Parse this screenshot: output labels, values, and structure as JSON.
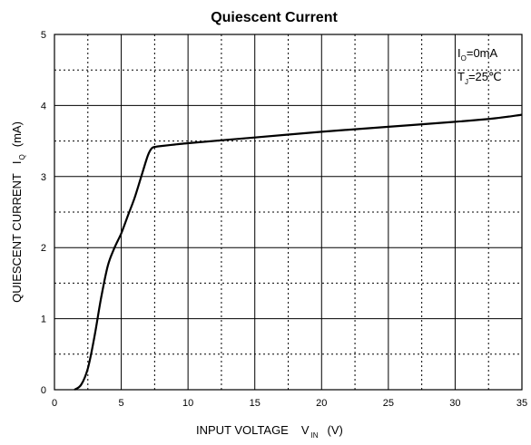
{
  "chart_data": {
    "type": "line",
    "title": "Quiescent Current",
    "xlabel": "INPUT VOLTAGE",
    "xlabel_symbol": "V",
    "xlabel_symbol_sub": "IN",
    "xlabel_unit": "(V)",
    "ylabel": "QUIESCENT CURRENT",
    "ylabel_symbol": "I",
    "ylabel_symbol_sub": "Q",
    "ylabel_unit": "(mA)",
    "xlim": [
      0,
      35
    ],
    "ylim": [
      0,
      5
    ],
    "xticks": [
      0,
      5,
      10,
      15,
      20,
      25,
      30,
      35
    ],
    "yticks": [
      0,
      1,
      2,
      3,
      4,
      5
    ],
    "grid": true,
    "annotations": [
      {
        "symbol": "I",
        "sub": "O",
        "text": "=0mA"
      },
      {
        "symbol": "T",
        "sub": "J",
        "text": "=25℃"
      }
    ],
    "series": [
      {
        "x": [
          1.5,
          2.0,
          2.5,
          3.0,
          3.5,
          4.0,
          4.5,
          5.0,
          5.5,
          6.0,
          6.5,
          7.0,
          7.3,
          7.6,
          8.0,
          9.0,
          10.0,
          15.0,
          20.0,
          25.0,
          30.0,
          33.0,
          35.0
        ],
        "y": [
          0.0,
          0.07,
          0.3,
          0.75,
          1.3,
          1.75,
          2.0,
          2.2,
          2.45,
          2.7,
          3.0,
          3.3,
          3.4,
          3.42,
          3.43,
          3.45,
          3.47,
          3.55,
          3.63,
          3.7,
          3.77,
          3.82,
          3.87
        ]
      }
    ]
  }
}
